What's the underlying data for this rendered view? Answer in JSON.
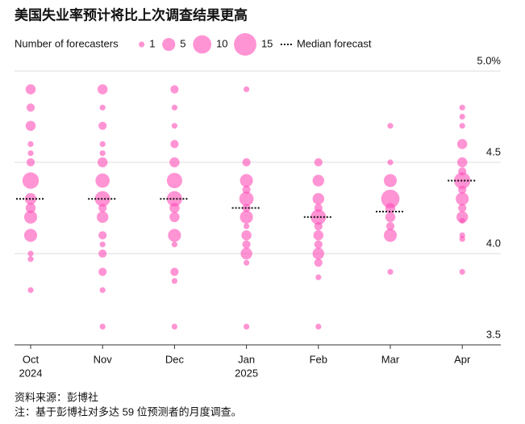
{
  "chart_data": {
    "type": "bubble",
    "title": "美国失业率预计将比上次调查结果更高",
    "size_legend_title": "Number of forecasters",
    "size_legend": [
      1,
      5,
      10,
      15
    ],
    "median_legend": "Median forecast",
    "categories": [
      "Oct",
      "Nov",
      "Dec",
      "Jan",
      "Feb",
      "Mar",
      "Apr"
    ],
    "category_years": [
      "2024",
      null,
      null,
      "2025",
      null,
      null,
      null
    ],
    "values": [
      [
        4.9,
        4.8,
        4.7,
        4.6,
        4.55,
        4.5,
        4.4,
        4.3,
        4.25,
        4.2,
        4.1,
        4.0,
        3.97,
        3.8
      ],
      [
        4.9,
        4.8,
        4.7,
        4.6,
        4.55,
        4.5,
        4.4,
        4.3,
        4.25,
        4.2,
        4.1,
        4.05,
        4.0,
        3.9,
        3.8,
        3.6
      ],
      [
        4.9,
        4.8,
        4.7,
        4.6,
        4.5,
        4.4,
        4.3,
        4.25,
        4.2,
        4.1,
        4.05,
        3.9,
        3.85,
        3.6
      ],
      [
        4.9,
        4.5,
        4.4,
        4.35,
        4.3,
        4.25,
        4.2,
        4.15,
        4.1,
        4.05,
        4.0,
        3.95,
        3.6
      ],
      [
        4.5,
        4.4,
        4.3,
        4.25,
        4.2,
        4.15,
        4.1,
        4.05,
        4.0,
        3.95,
        3.87,
        3.6
      ],
      [
        4.7,
        4.5,
        4.4,
        4.3,
        4.25,
        4.2,
        4.15,
        4.1,
        3.9
      ],
      [
        4.8,
        4.75,
        4.7,
        4.6,
        4.5,
        4.45,
        4.4,
        4.35,
        4.3,
        4.25,
        4.2,
        4.18,
        4.1,
        4.08,
        3.9
      ]
    ],
    "sizes": [
      [
        3,
        2,
        3,
        1,
        1,
        2,
        8,
        4,
        3,
        5,
        5,
        1,
        1,
        1
      ],
      [
        3,
        1,
        2,
        1,
        1,
        3,
        6,
        7,
        2,
        4,
        2,
        1,
        2,
        2,
        1,
        1
      ],
      [
        2,
        1,
        1,
        2,
        3,
        7,
        7,
        3,
        3,
        5,
        1,
        2,
        1,
        1
      ],
      [
        1,
        2,
        5,
        2,
        6,
        2,
        5,
        1,
        3,
        2,
        4,
        1,
        1
      ],
      [
        2,
        4,
        4,
        2,
        7,
        2,
        3,
        2,
        4,
        2,
        1,
        1
      ],
      [
        1,
        1,
        5,
        10,
        3,
        3,
        2,
        5,
        1
      ],
      [
        1,
        1,
        1,
        3,
        3,
        2,
        8,
        2,
        5,
        2,
        4,
        1,
        1,
        1,
        1
      ]
    ],
    "medians": [
      4.3,
      4.3,
      4.3,
      4.25,
      4.2,
      4.23,
      4.4
    ],
    "color": "#ff4db8",
    "ylim": [
      3.5,
      5.0
    ],
    "yticks": [
      {
        "value": 5,
        "label": "5.0%"
      },
      4.5,
      {
        "value": 4,
        "label": "4.0"
      },
      3.5
    ],
    "grid": true,
    "source": "资料来源：彭博社",
    "note": "注：基于彭博社对多达 59 位预测者的月度调查。"
  }
}
